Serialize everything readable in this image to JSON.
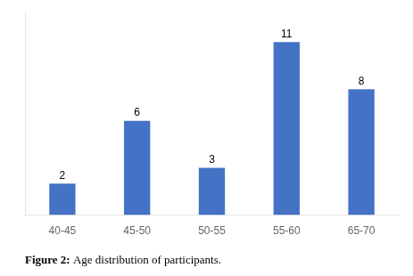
{
  "chart_data": {
    "type": "bar",
    "title": "Figure 2: Age distribution of participants.",
    "categories": [
      "40-45",
      "45-50",
      "50-55",
      "55-60",
      "65-70"
    ],
    "values": [
      2,
      6,
      3,
      11,
      8
    ],
    "color": "#4472C4",
    "ylim": [
      0,
      13
    ],
    "grid": false,
    "data_labels": true,
    "tick_labels": "x"
  }
}
